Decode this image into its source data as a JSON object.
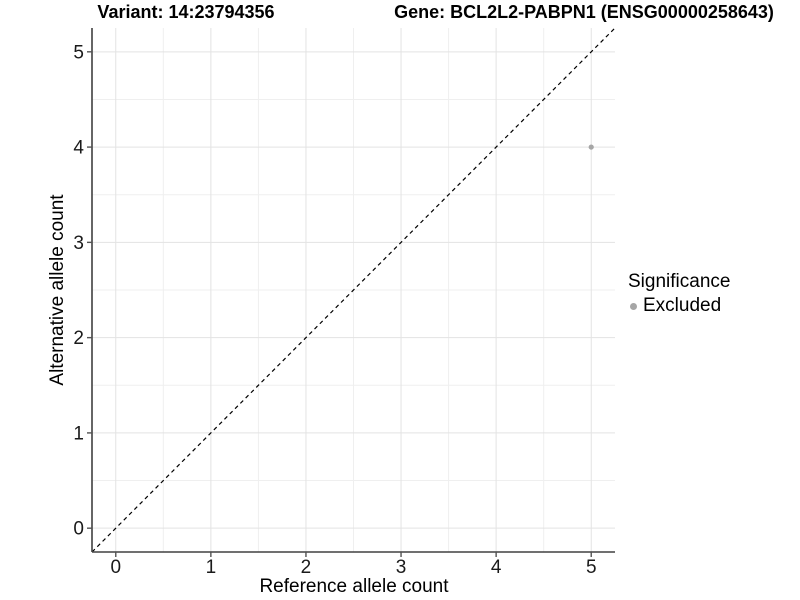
{
  "header": {
    "variant_title": "Variant: 14:23794356",
    "gene_title": "Gene: BCL2L2-PABPN1 (ENSG00000258643)"
  },
  "chart_data": {
    "type": "scatter",
    "title": "Variant: 14:23794356",
    "subtitle_right": "Gene: BCL2L2-PABPN1 (ENSG00000258643)",
    "xlabel": "Reference allele count",
    "ylabel": "Alternative allele count",
    "xlim": [
      -0.25,
      5.25
    ],
    "ylim": [
      -0.25,
      5.25
    ],
    "xticks": [
      0,
      1,
      2,
      3,
      4,
      5
    ],
    "yticks": [
      0,
      1,
      2,
      3,
      4,
      5
    ],
    "x_minor_ticks": [
      0.5,
      1.5,
      2.5,
      3.5,
      4.5
    ],
    "y_minor_ticks": [
      0.5,
      1.5,
      2.5,
      3.5,
      4.5
    ],
    "grid": "major+minor",
    "reference_line": {
      "type": "identity-diagonal",
      "style": "dashed",
      "color": "#000000"
    },
    "series": [
      {
        "name": "Excluded",
        "color": "#a6a6a6",
        "points": [
          {
            "x": 5,
            "y": 4
          }
        ]
      }
    ],
    "legend": {
      "title": "Significance",
      "position": "right",
      "entries": [
        {
          "label": "Excluded",
          "color": "#a6a6a6",
          "marker": "circle"
        }
      ]
    }
  },
  "colors": {
    "grid_major": "#e3e3e3",
    "grid_minor": "#efefef",
    "axis_line": "#404040",
    "tick_mark": "#535353",
    "tick_text": "#1a1a1a",
    "point": "#a6a6a6",
    "dashed_line": "#000000",
    "background": "#ffffff"
  }
}
